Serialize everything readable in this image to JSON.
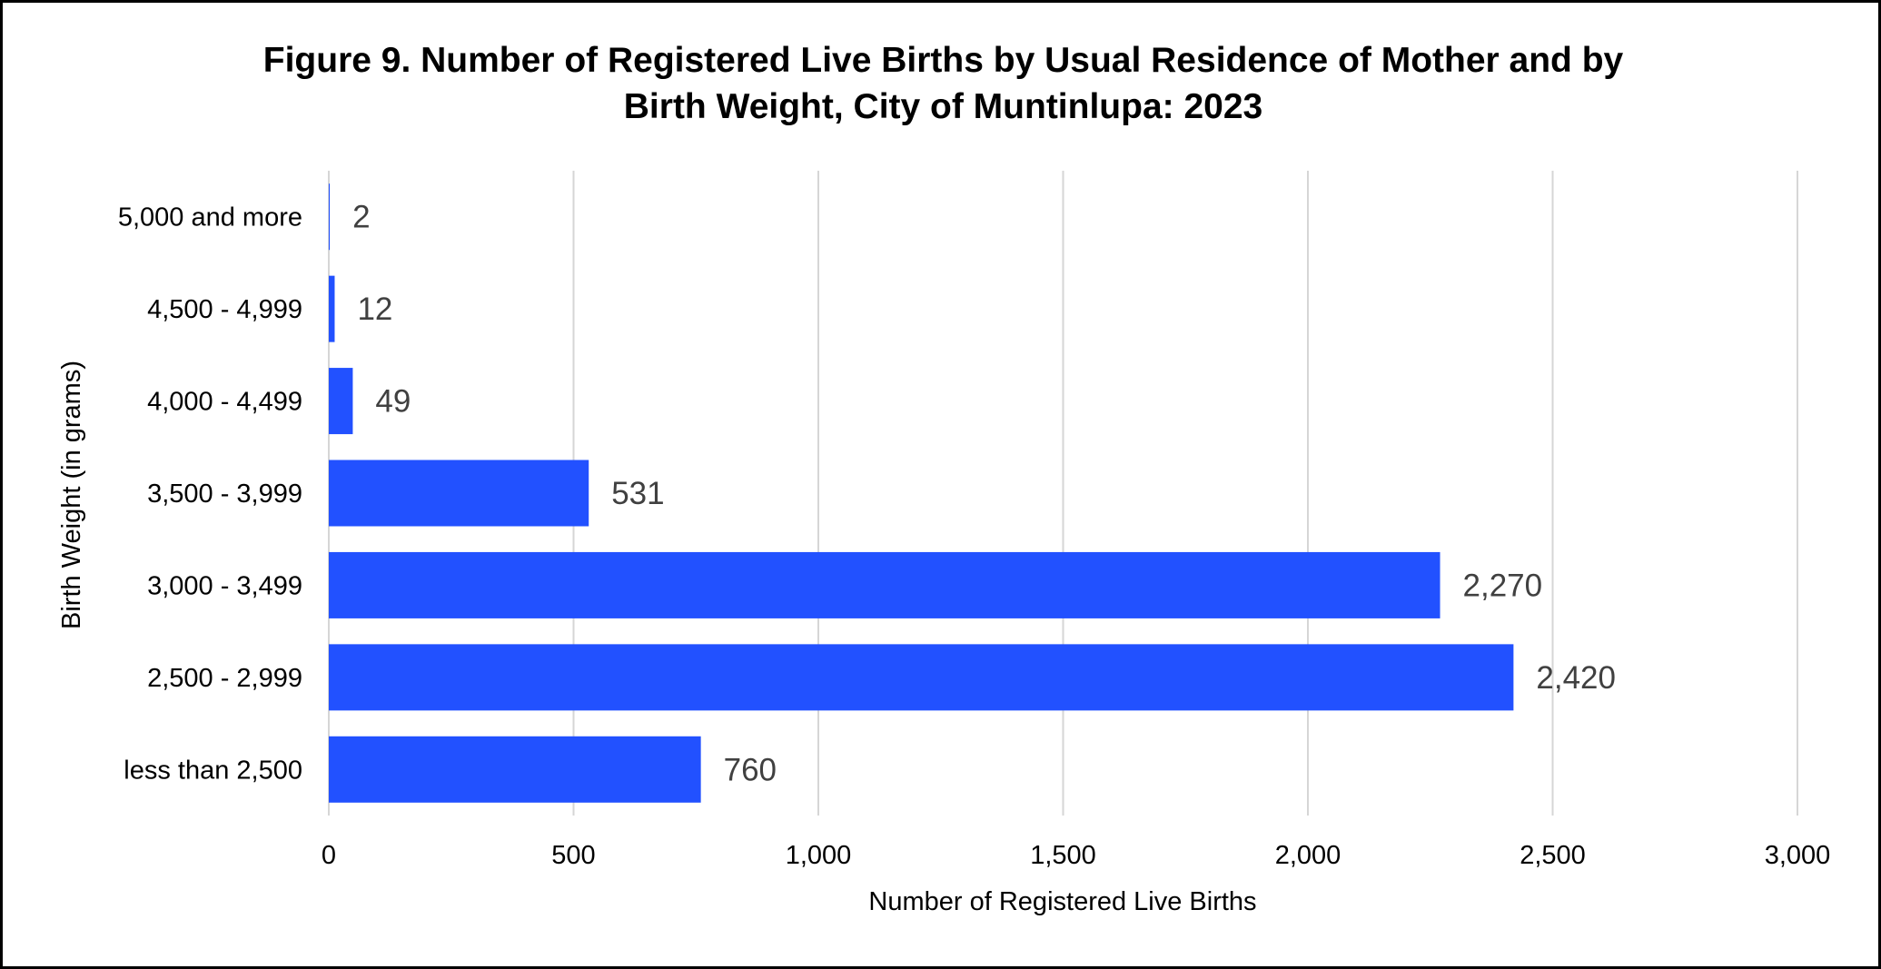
{
  "chart_data": {
    "type": "bar",
    "orientation": "horizontal",
    "title_lines": [
      "Figure 9. Number of Registered Live Births by Usual Residence of Mother and by",
      "Birth Weight, City of Muntinlupa: 2023"
    ],
    "xlabel": "Number of Registered Live Births",
    "ylabel": "Birth Weight (in grams)",
    "categories": [
      "5,000 and more",
      "4,500 - 4,999",
      "4,000 - 4,499",
      "3,500 - 3,999",
      "3,000 - 3,499",
      "2,500 - 2,999",
      "less than 2,500"
    ],
    "values": [
      2,
      12,
      49,
      531,
      2270,
      2420,
      760
    ],
    "value_labels": [
      "2",
      "12",
      "49",
      "531",
      "2,270",
      "2,420",
      "760"
    ],
    "xlim": [
      0,
      3000
    ],
    "xticks": [
      0,
      500,
      1000,
      1500,
      2000,
      2500,
      3000
    ],
    "xtick_labels": [
      "0",
      "500",
      "1,000",
      "1,500",
      "2,000",
      "2,500",
      "3,000"
    ],
    "grid": "vertical",
    "legend": "none",
    "colors": {
      "bar": "#2251FF",
      "grid": "#D6D6D6",
      "axis_text": "#000000",
      "value_label": "#404040"
    }
  }
}
